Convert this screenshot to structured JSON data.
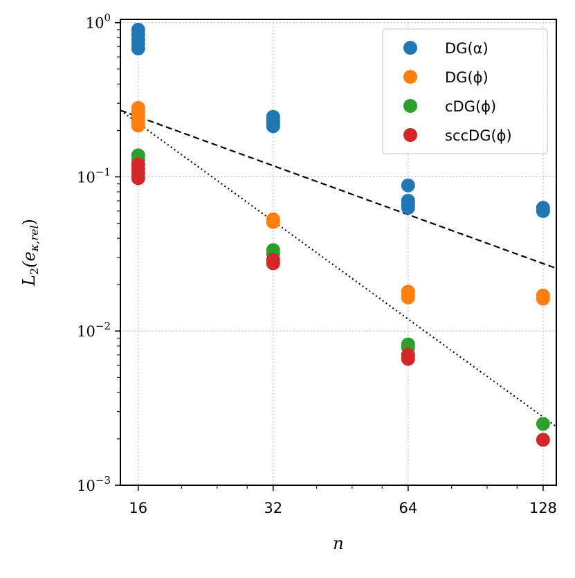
{
  "chart_data": {
    "type": "scatter",
    "x_scale": "log2",
    "y_scale": "log10",
    "xlabel": "n",
    "ylabel_base": "L",
    "ylabel_sub": "2",
    "ylabel_arg": "(e",
    "ylabel_arg_sub": "κ,rel",
    "ylabel_close": ")",
    "x_ticks": [
      16,
      32,
      64,
      128
    ],
    "x_tick_labels": [
      "16",
      "32",
      "64",
      "128"
    ],
    "y_ticks": [
      0.001,
      0.01,
      0.1,
      1
    ],
    "y_tick_labels": [
      {
        "base": "10",
        "exp": "−3"
      },
      {
        "base": "10",
        "exp": "−2"
      },
      {
        "base": "10",
        "exp": "−1"
      },
      {
        "base": "10",
        "exp": "0"
      }
    ],
    "xlim": [
      14.6,
      137
    ],
    "ylim": [
      0.001,
      1.05
    ],
    "grid": true,
    "legend_position": "top-right",
    "series": [
      {
        "name": "DG(α)",
        "color": "#1f77b4",
        "points": [
          {
            "x": 16,
            "y": 0.9
          },
          {
            "x": 16,
            "y": 0.84
          },
          {
            "x": 16,
            "y": 0.78
          },
          {
            "x": 16,
            "y": 0.73
          },
          {
            "x": 16,
            "y": 0.68
          },
          {
            "x": 32,
            "y": 0.245
          },
          {
            "x": 32,
            "y": 0.232
          },
          {
            "x": 32,
            "y": 0.222
          },
          {
            "x": 32,
            "y": 0.213
          },
          {
            "x": 64,
            "y": 0.088
          },
          {
            "x": 64,
            "y": 0.07
          },
          {
            "x": 64,
            "y": 0.066
          },
          {
            "x": 64,
            "y": 0.063
          },
          {
            "x": 128,
            "y": 0.063
          },
          {
            "x": 128,
            "y": 0.06
          }
        ]
      },
      {
        "name": "DG(ϕ)",
        "color": "#ff7f0e",
        "points": [
          {
            "x": 16,
            "y": 0.28
          },
          {
            "x": 16,
            "y": 0.265
          },
          {
            "x": 16,
            "y": 0.25
          },
          {
            "x": 16,
            "y": 0.236
          },
          {
            "x": 16,
            "y": 0.224
          },
          {
            "x": 16,
            "y": 0.215
          },
          {
            "x": 32,
            "y": 0.053
          },
          {
            "x": 32,
            "y": 0.051
          },
          {
            "x": 64,
            "y": 0.018
          },
          {
            "x": 64,
            "y": 0.017
          },
          {
            "x": 64,
            "y": 0.0165
          },
          {
            "x": 128,
            "y": 0.017
          },
          {
            "x": 128,
            "y": 0.0162
          }
        ]
      },
      {
        "name": "cDG(ϕ)",
        "color": "#2ca02c",
        "points": [
          {
            "x": 16,
            "y": 0.138
          },
          {
            "x": 16,
            "y": 0.128
          },
          {
            "x": 32,
            "y": 0.0335
          },
          {
            "x": 32,
            "y": 0.0318
          },
          {
            "x": 64,
            "y": 0.0082
          },
          {
            "x": 64,
            "y": 0.0078
          },
          {
            "x": 128,
            "y": 0.0025
          }
        ]
      },
      {
        "name": "sccDG(ϕ)",
        "color": "#d62728",
        "points": [
          {
            "x": 16,
            "y": 0.12
          },
          {
            "x": 16,
            "y": 0.112
          },
          {
            "x": 16,
            "y": 0.105
          },
          {
            "x": 16,
            "y": 0.098
          },
          {
            "x": 32,
            "y": 0.029
          },
          {
            "x": 32,
            "y": 0.0275
          },
          {
            "x": 64,
            "y": 0.007
          },
          {
            "x": 64,
            "y": 0.0066
          },
          {
            "x": 128,
            "y": 0.00197
          }
        ]
      }
    ],
    "reference_lines": [
      {
        "style": "dashed",
        "from": {
          "x": 14.6,
          "y": 0.27
        },
        "to": {
          "x": 137,
          "y": 0.0255
        }
      },
      {
        "style": "dotted",
        "from": {
          "x": 14.6,
          "y": 0.27
        },
        "to": {
          "x": 137,
          "y": 0.0024
        }
      }
    ]
  }
}
